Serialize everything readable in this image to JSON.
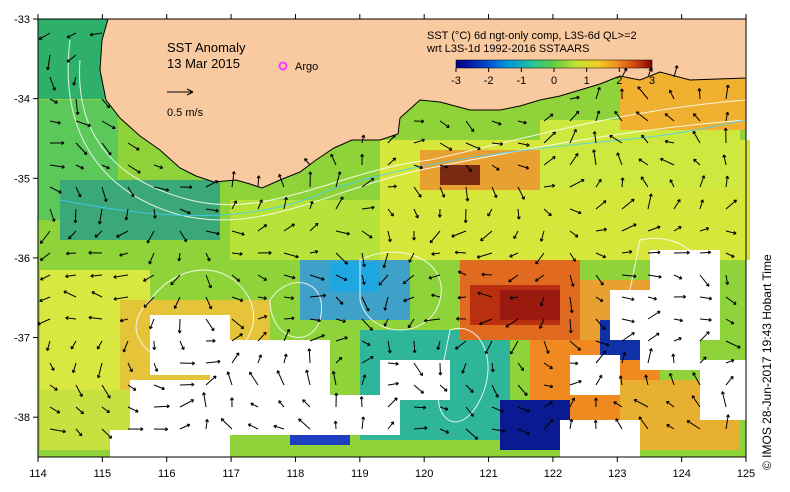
{
  "map": {
    "title": "SST Anomaly",
    "date": "13 Mar 2015",
    "argo_label": "Argo",
    "velocity_label": "0.5 m/s",
    "legend": {
      "line1": "SST (°C) 6d ngt-only comp, L3S-6d QL>=2",
      "line2": "wrt L3S-1d 1992-2016 SSTAARS",
      "ticks": [
        "-3",
        "-2",
        "-1",
        "0",
        "1",
        "2",
        "3"
      ],
      "range": [
        -3,
        3
      ]
    },
    "credit": "© IMOS 28-Jun-2017 19:43 Hobart Time",
    "x_ticks": [
      "114",
      "115",
      "116",
      "117",
      "118",
      "119",
      "120",
      "121",
      "122",
      "123",
      "124",
      "125"
    ],
    "y_ticks": [
      "-33",
      "-34",
      "-35",
      "-36",
      "-37",
      "-38"
    ],
    "extent": {
      "lon": [
        114,
        125
      ],
      "lat": [
        -38.5,
        -33
      ]
    },
    "colors": {
      "land": "#f9c9a0",
      "missing": "#ffffff",
      "argo": "#ff33ff"
    }
  },
  "chart_data": {
    "type": "heatmap",
    "title": "SST Anomaly",
    "subtitle": "13 Mar 2015",
    "colorbar": {
      "min": -3,
      "max": 3,
      "ticks": [
        -3,
        -2,
        -1,
        0,
        1,
        2,
        3
      ]
    },
    "xlim": [
      114,
      125
    ],
    "ylim": [
      -38.5,
      -33
    ]
  }
}
